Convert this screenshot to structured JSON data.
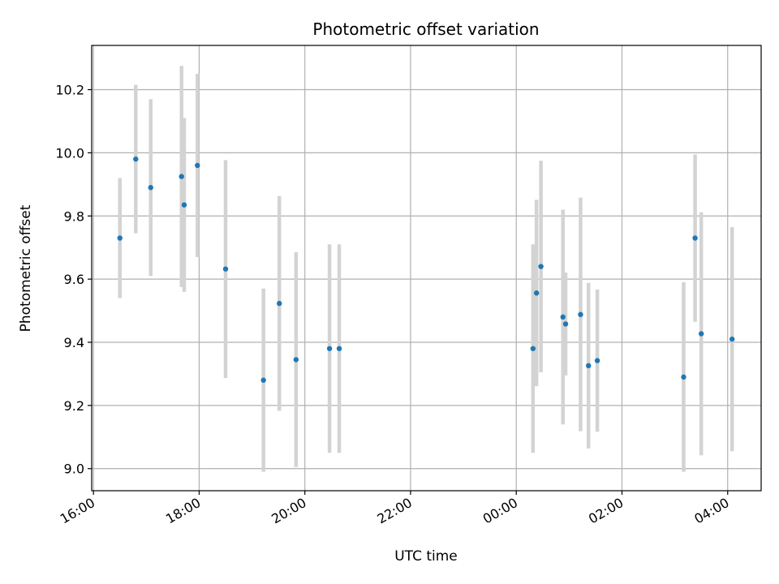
{
  "chart_data": {
    "type": "scatter",
    "title": "Photometric offset variation",
    "xlabel": "UTC time",
    "ylabel": "Photometric offset",
    "grid": true,
    "x_start": "16:00",
    "x_tick_labels": [
      "16:00",
      "18:00",
      "20:00",
      "22:00",
      "00:00",
      "02:00",
      "04:00"
    ],
    "xlim": [
      "15:58",
      "04:38"
    ],
    "y_ticks": [
      9.0,
      9.2,
      9.4,
      9.6,
      9.8,
      10.0,
      10.2
    ],
    "y_tick_labels": [
      "9.0",
      "9.2",
      "9.4",
      "9.6",
      "9.8",
      "10.0",
      "10.2"
    ],
    "ylim": [
      8.93,
      10.34
    ],
    "point_color": "#1f77b4",
    "errorbar_color": "#d3d3d3",
    "points": [
      {
        "time": "16:30",
        "value": 9.73,
        "err": 0.19
      },
      {
        "time": "16:48",
        "value": 9.98,
        "err": 0.235
      },
      {
        "time": "17:05",
        "value": 9.89,
        "err": 0.28
      },
      {
        "time": "17:40",
        "value": 9.925,
        "err": 0.35
      },
      {
        "time": "17:43",
        "value": 9.835,
        "err": 0.275
      },
      {
        "time": "17:58",
        "value": 9.96,
        "err": 0.29
      },
      {
        "time": "18:30",
        "value": 9.632,
        "err": 0.345
      },
      {
        "time": "19:13",
        "value": 9.28,
        "err": 0.29
      },
      {
        "time": "19:31",
        "value": 9.523,
        "err": 0.34
      },
      {
        "time": "19:50",
        "value": 9.345,
        "err": 0.34
      },
      {
        "time": "20:28",
        "value": 9.38,
        "err": 0.33
      },
      {
        "time": "20:39",
        "value": 9.38,
        "err": 0.33
      },
      {
        "time": "00:19",
        "value": 9.38,
        "err": 0.33
      },
      {
        "time": "00:23",
        "value": 9.556,
        "err": 0.295
      },
      {
        "time": "00:28",
        "value": 9.64,
        "err": 0.335
      },
      {
        "time": "00:53",
        "value": 9.48,
        "err": 0.34
      },
      {
        "time": "00:56",
        "value": 9.458,
        "err": 0.163
      },
      {
        "time": "01:13",
        "value": 9.488,
        "err": 0.37
      },
      {
        "time": "01:22",
        "value": 9.326,
        "err": 0.262
      },
      {
        "time": "01:32",
        "value": 9.342,
        "err": 0.225
      },
      {
        "time": "03:10",
        "value": 9.29,
        "err": 0.3
      },
      {
        "time": "03:23",
        "value": 9.73,
        "err": 0.265
      },
      {
        "time": "03:30",
        "value": 9.427,
        "err": 0.385
      },
      {
        "time": "04:05",
        "value": 9.41,
        "err": 0.355
      }
    ]
  }
}
